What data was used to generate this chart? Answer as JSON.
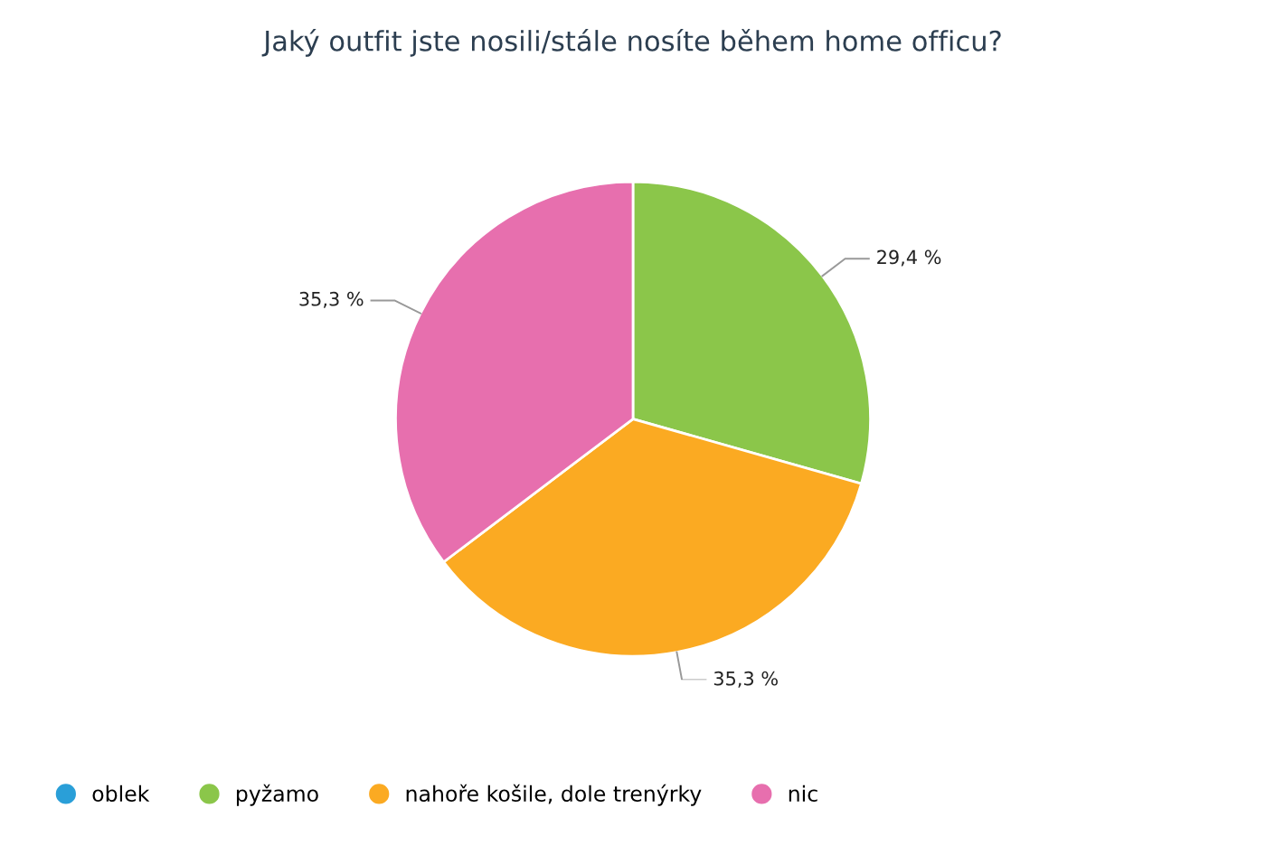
{
  "chart_data": {
    "type": "pie",
    "title": "Jaký outfit jste nosili/stále nosíte během home officu?",
    "categories": [
      "oblek",
      "pyžamo",
      "nahoře košile, dole trenýrky",
      "nic"
    ],
    "values": [
      0,
      29.4,
      35.3,
      35.3
    ],
    "value_labels": [
      null,
      "29,4 %",
      "35,3 %",
      "35,3 %"
    ],
    "colors": [
      "#2a9fd8",
      "#8bc64a",
      "#fbaa22",
      "#e76fae"
    ],
    "legend": "bottom left"
  }
}
